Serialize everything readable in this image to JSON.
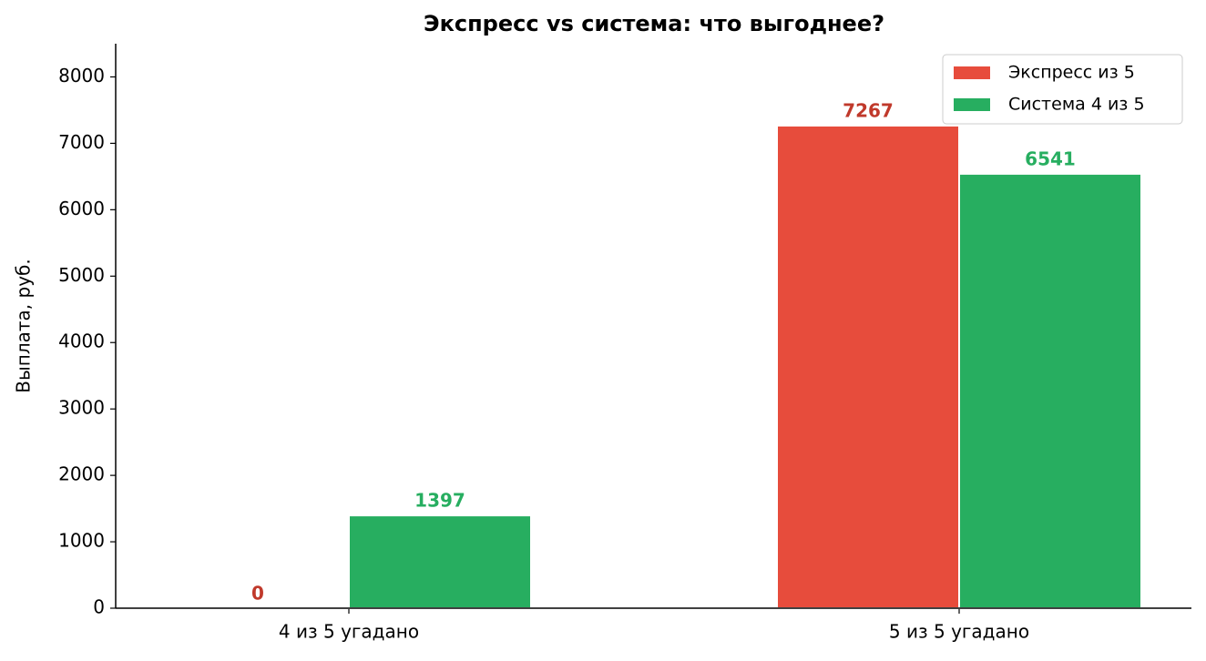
{
  "chart_data": {
    "type": "bar",
    "title": "Экспресс vs система: что выгоднее?",
    "y_label": "Выплата, руб.",
    "categories": [
      "4 из 5 угадано",
      "5 из 5 угадано"
    ],
    "series": [
      {
        "name": "Экспресс из 5",
        "color": "#e74c3c",
        "label_color": "#c0392b",
        "values": [
          0,
          7267
        ]
      },
      {
        "name": "Система 4 из 5",
        "color": "#27ae60",
        "label_color": "#27ae60",
        "values": [
          1397,
          6541
        ]
      }
    ],
    "ylim": [
      0,
      8500
    ],
    "yticks": [
      0,
      1000,
      2000,
      3000,
      4000,
      5000,
      6000,
      7000,
      8000
    ],
    "legend": "upper right",
    "grid": false
  }
}
